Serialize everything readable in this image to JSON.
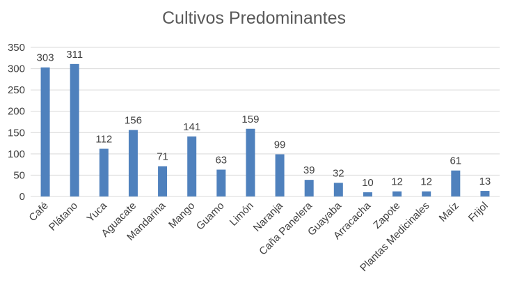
{
  "chart_data": {
    "type": "bar",
    "title": "Cultivos Predominantes",
    "categories": [
      "Café",
      "Plátano",
      "Yuca",
      "Aguacate",
      "Mandarina",
      "Mango",
      "Guamo",
      "Limón",
      "Naranja",
      "Caña Panelera",
      "Guayaba",
      "Arracacha",
      "Zapote",
      "Plantas Medicinales",
      "Maíz",
      "Frijol"
    ],
    "values": [
      303,
      311,
      112,
      156,
      71,
      141,
      63,
      159,
      99,
      39,
      32,
      10,
      12,
      12,
      61,
      13
    ],
    "yticks": [
      0,
      50,
      100,
      150,
      200,
      250,
      300,
      350
    ],
    "ylim": [
      0,
      350
    ],
    "grid": true,
    "legend": "none",
    "data_labels": true,
    "bar_color": "#4f81bd"
  }
}
